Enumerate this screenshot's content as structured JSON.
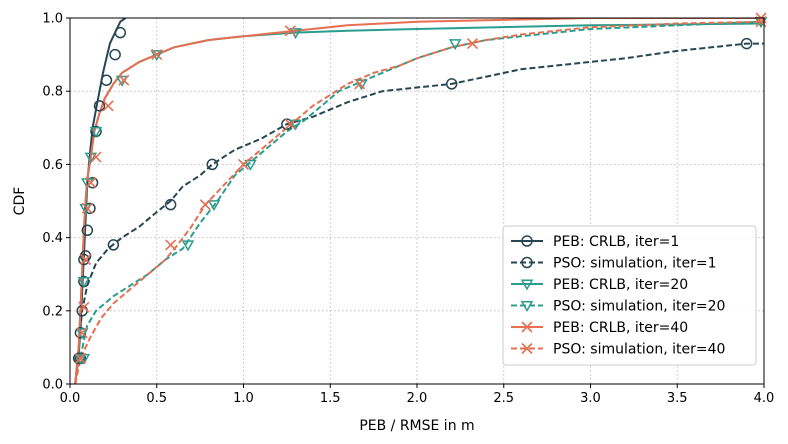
{
  "chart_data": {
    "type": "line",
    "xlabel": "PEB / RMSE in m",
    "ylabel": "CDF",
    "xlim": [
      0,
      4
    ],
    "ylim": [
      0,
      1
    ],
    "xticks": [
      "0.0",
      "0.5",
      "1.0",
      "1.5",
      "2.0",
      "2.5",
      "3.0",
      "3.5",
      "4.0"
    ],
    "yticks": [
      "0.0",
      "0.2",
      "0.4",
      "0.6",
      "0.8",
      "1.0"
    ],
    "grid": true,
    "legend_position": "bottom-right",
    "series": [
      {
        "name": "PEB: CRLB, iter=1",
        "color": "#264653",
        "dash": "solid",
        "marker": "circle",
        "x": [
          0.03,
          0.05,
          0.06,
          0.07,
          0.08,
          0.09,
          0.1,
          0.115,
          0.13,
          0.15,
          0.17,
          0.19,
          0.21,
          0.23,
          0.26,
          0.29,
          0.32
        ],
        "y": [
          0.0,
          0.08,
          0.15,
          0.25,
          0.35,
          0.45,
          0.55,
          0.63,
          0.7,
          0.75,
          0.8,
          0.85,
          0.89,
          0.93,
          0.96,
          0.99,
          1.0
        ],
        "markers_x": [
          0.05,
          0.06,
          0.07,
          0.08,
          0.09,
          0.1,
          0.115,
          0.13,
          0.15,
          0.17,
          0.21,
          0.26,
          0.29
        ],
        "markers_y": [
          0.07,
          0.14,
          0.2,
          0.28,
          0.35,
          0.42,
          0.48,
          0.55,
          0.69,
          0.76,
          0.83,
          0.9,
          0.96
        ]
      },
      {
        "name": "PSO: simulation, iter=1",
        "color": "#264653",
        "dash": "dashed",
        "marker": "circle",
        "x": [
          0.03,
          0.05,
          0.07,
          0.1,
          0.15,
          0.22,
          0.3,
          0.4,
          0.5,
          0.58,
          0.65,
          0.75,
          0.82,
          0.95,
          1.1,
          1.25,
          1.4,
          1.6,
          1.8,
          2.0,
          2.2,
          2.4,
          2.6,
          2.8,
          3.0,
          3.2,
          3.5,
          3.9,
          4.0
        ],
        "y": [
          0.0,
          0.1,
          0.2,
          0.27,
          0.33,
          0.37,
          0.4,
          0.43,
          0.47,
          0.5,
          0.54,
          0.57,
          0.6,
          0.64,
          0.67,
          0.71,
          0.73,
          0.77,
          0.8,
          0.81,
          0.82,
          0.84,
          0.86,
          0.87,
          0.88,
          0.89,
          0.91,
          0.93,
          0.93
        ],
        "markers_x": [
          0.06,
          0.08,
          0.25,
          0.58,
          0.82,
          1.25,
          2.2,
          3.9
        ],
        "markers_y": [
          0.07,
          0.34,
          0.38,
          0.49,
          0.6,
          0.71,
          0.82,
          0.93
        ]
      },
      {
        "name": "PEB: CRLB, iter=20",
        "color": "#2a9d8f",
        "dash": "solid",
        "marker": "triangle",
        "x": [
          0.03,
          0.05,
          0.07,
          0.08,
          0.09,
          0.1,
          0.12,
          0.14,
          0.17,
          0.2,
          0.25,
          0.3,
          0.4,
          0.5,
          0.6,
          0.7,
          0.8,
          1.0,
          1.3,
          1.6,
          2.0,
          3.0,
          4.0
        ],
        "y": [
          0.0,
          0.1,
          0.3,
          0.42,
          0.5,
          0.56,
          0.62,
          0.69,
          0.74,
          0.78,
          0.82,
          0.85,
          0.88,
          0.9,
          0.92,
          0.93,
          0.94,
          0.95,
          0.96,
          0.965,
          0.97,
          0.98,
          0.985
        ],
        "markers_x": [
          0.06,
          0.07,
          0.08,
          0.09,
          0.1,
          0.12,
          0.15,
          0.3,
          0.5,
          1.3,
          4.0
        ],
        "markers_y": [
          0.07,
          0.14,
          0.28,
          0.48,
          0.55,
          0.62,
          0.69,
          0.83,
          0.9,
          0.96,
          0.99
        ]
      },
      {
        "name": "PSO: simulation, iter=20",
        "color": "#2a9d8f",
        "dash": "dashed",
        "marker": "triangle",
        "x": [
          0.03,
          0.06,
          0.08,
          0.1,
          0.15,
          0.25,
          0.35,
          0.45,
          0.55,
          0.65,
          0.75,
          0.85,
          0.95,
          1.05,
          1.15,
          1.25,
          1.35,
          1.45,
          1.55,
          1.7,
          1.85,
          2.0,
          2.2,
          2.4,
          2.6,
          2.8,
          3.0,
          3.5,
          4.0
        ],
        "y": [
          0.0,
          0.07,
          0.12,
          0.16,
          0.2,
          0.24,
          0.27,
          0.3,
          0.34,
          0.37,
          0.44,
          0.5,
          0.57,
          0.61,
          0.65,
          0.69,
          0.72,
          0.76,
          0.8,
          0.83,
          0.86,
          0.89,
          0.92,
          0.94,
          0.95,
          0.96,
          0.97,
          0.98,
          0.99
        ],
        "markers_x": [
          0.08,
          0.68,
          0.83,
          1.04,
          1.3,
          1.68,
          2.22,
          4.0
        ],
        "markers_y": [
          0.07,
          0.38,
          0.49,
          0.6,
          0.71,
          0.82,
          0.93,
          0.99
        ]
      },
      {
        "name": "PEB: CRLB, iter=40",
        "color": "#e76f51",
        "dash": "solid",
        "marker": "x",
        "x": [
          0.03,
          0.05,
          0.07,
          0.08,
          0.09,
          0.1,
          0.12,
          0.14,
          0.17,
          0.2,
          0.25,
          0.3,
          0.4,
          0.5,
          0.6,
          0.7,
          0.8,
          1.0,
          1.3,
          1.6,
          2.0,
          3.0,
          4.0
        ],
        "y": [
          0.0,
          0.1,
          0.3,
          0.42,
          0.5,
          0.56,
          0.62,
          0.69,
          0.74,
          0.78,
          0.82,
          0.85,
          0.88,
          0.9,
          0.92,
          0.93,
          0.94,
          0.95,
          0.965,
          0.98,
          0.99,
          1.0,
          1.0
        ],
        "markers_x": [
          0.06,
          0.07,
          0.08,
          0.09,
          0.1,
          0.12,
          0.15,
          0.22,
          0.31,
          0.5,
          1.27,
          4.0
        ],
        "markers_y": [
          0.07,
          0.14,
          0.21,
          0.34,
          0.48,
          0.55,
          0.62,
          0.76,
          0.83,
          0.9,
          0.965,
          1.0
        ]
      },
      {
        "name": "PSO: simulation, iter=40",
        "color": "#e76f51",
        "dash": "dashed",
        "marker": "x",
        "x": [
          0.03,
          0.06,
          0.09,
          0.12,
          0.18,
          0.25,
          0.35,
          0.45,
          0.55,
          0.62,
          0.7,
          0.78,
          0.9,
          1.0,
          1.1,
          1.2,
          1.3,
          1.4,
          1.5,
          1.6,
          1.75,
          1.9,
          2.0,
          2.2,
          2.4,
          2.6,
          2.8,
          3.0,
          3.5,
          4.0
        ],
        "y": [
          0.0,
          0.07,
          0.1,
          0.13,
          0.18,
          0.22,
          0.26,
          0.3,
          0.34,
          0.38,
          0.43,
          0.49,
          0.55,
          0.6,
          0.64,
          0.68,
          0.72,
          0.76,
          0.79,
          0.82,
          0.85,
          0.87,
          0.89,
          0.92,
          0.94,
          0.955,
          0.965,
          0.975,
          0.985,
          0.99
        ],
        "markers_x": [
          0.06,
          0.58,
          0.78,
          1.0,
          1.27,
          1.67,
          2.32,
          4.0
        ],
        "markers_y": [
          0.07,
          0.38,
          0.49,
          0.6,
          0.71,
          0.82,
          0.93,
          0.99
        ]
      }
    ]
  }
}
